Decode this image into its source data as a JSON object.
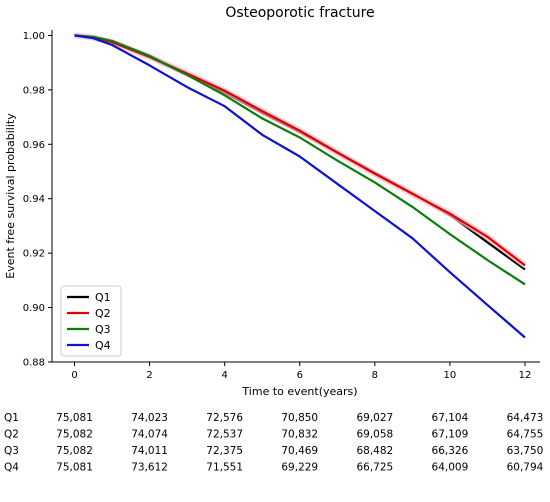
{
  "chart_data": {
    "type": "line",
    "title": "Osteoporotic fracture",
    "xlabel": "Time to event(years)",
    "ylabel": "Event free survival probability",
    "xlim": [
      -0.6,
      12.4
    ],
    "ylim": [
      0.88,
      1.002
    ],
    "xticks": [
      "0",
      "2",
      "4",
      "6",
      "8",
      "10",
      "12"
    ],
    "yticks": [
      "0.88",
      "0.90",
      "0.92",
      "0.94",
      "0.96",
      "0.98",
      "1.00"
    ],
    "grid": false,
    "legend": "bottom-left",
    "series": [
      {
        "name": "Q1",
        "color": "#000000",
        "x": [
          0,
          0.5,
          1,
          2,
          3,
          4,
          5,
          6,
          7,
          8,
          9,
          10,
          11,
          12
        ],
        "y": [
          1.0,
          0.9992,
          0.9975,
          0.992,
          0.9855,
          0.979,
          0.9715,
          0.9645,
          0.957,
          0.9495,
          0.942,
          0.934,
          0.924,
          0.914
        ]
      },
      {
        "name": "Q2",
        "color": "#e00000",
        "x": [
          0,
          0.5,
          1,
          2,
          3,
          4,
          5,
          6,
          7,
          8,
          9,
          10,
          11,
          12
        ],
        "y": [
          1.0,
          0.9992,
          0.9975,
          0.9922,
          0.986,
          0.9797,
          0.9722,
          0.965,
          0.957,
          0.9492,
          0.9418,
          0.9345,
          0.926,
          0.9155
        ]
      },
      {
        "name": "Q3",
        "color": "#0a7d0a",
        "x": [
          0,
          0.5,
          1,
          2,
          3,
          4,
          5,
          6,
          7,
          8,
          9,
          10,
          11,
          12
        ],
        "y": [
          1.0,
          0.9995,
          0.998,
          0.9925,
          0.9855,
          0.978,
          0.9695,
          0.9625,
          0.954,
          0.946,
          0.937,
          0.927,
          0.9175,
          0.9085
        ]
      },
      {
        "name": "Q4",
        "color": "#1010d0",
        "x": [
          0,
          0.5,
          1,
          2,
          3,
          4,
          5,
          6,
          7,
          8,
          9,
          10,
          11,
          12
        ],
        "y": [
          1.0,
          0.999,
          0.9965,
          0.989,
          0.981,
          0.974,
          0.9635,
          0.9555,
          0.9455,
          0.9355,
          0.9255,
          0.913,
          0.901,
          0.889
        ]
      }
    ],
    "risk_table": {
      "rows": [
        {
          "label": "Q1",
          "values": [
            "75,081",
            "74,023",
            "72,576",
            "70,850",
            "69,027",
            "67,104",
            "64,473"
          ]
        },
        {
          "label": "Q2",
          "values": [
            "75,082",
            "74,074",
            "72,537",
            "70,832",
            "69,058",
            "67,109",
            "64,755"
          ]
        },
        {
          "label": "Q3",
          "values": [
            "75,082",
            "74,011",
            "72,375",
            "70,469",
            "68,482",
            "66,326",
            "63,750"
          ]
        },
        {
          "label": "Q4",
          "values": [
            "75,081",
            "73,612",
            "71,551",
            "69,229",
            "66,725",
            "64,009",
            "60,794"
          ]
        }
      ]
    }
  }
}
